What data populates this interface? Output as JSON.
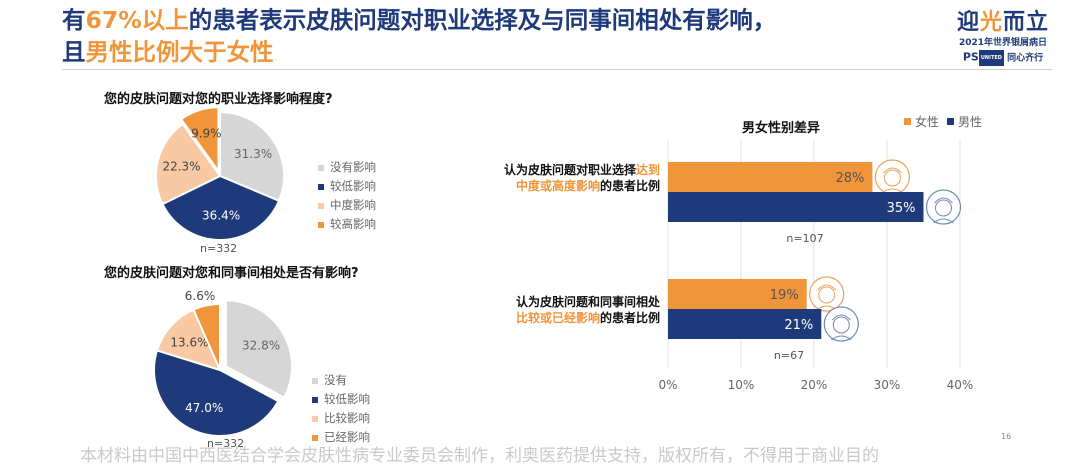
{
  "slide": {
    "title_line1_a": "有",
    "title_line1_hl": "67%以上",
    "title_line1_b": "的患者表示皮肤问题对职业选择及与同事间相处有影响，",
    "title_line2_a": "且",
    "title_line2_hl": "男性比例大于女性",
    "footer": "本材料由中国中西医结合学会皮肤性病专业委员会制作，利奥医药提供支持，版权所有，不得用于商业目的",
    "page_number": "16"
  },
  "logo": {
    "main_a": "迎",
    "main_b": "光",
    "main_c": "而立",
    "sub": "2021年世界银屑病日",
    "ps": "PS",
    "badge": "UNITED",
    "tail": "同心齐行"
  },
  "colors": {
    "navy": "#1f3a7a",
    "orange": "#f0953a",
    "peach": "#f8c9a3",
    "gray": "#d6d6d6"
  },
  "chart_data": [
    {
      "type": "pie",
      "title": "您的皮肤问题对您的职业选择影响程度?",
      "categories": [
        "没有影响",
        "较低影响",
        "中度影响",
        "较高影响"
      ],
      "values": [
        31.3,
        36.4,
        22.3,
        9.9
      ],
      "value_labels": [
        "31.3%",
        "36.4%",
        "22.3%",
        "9.9%"
      ],
      "colors": [
        "#d6d6d6",
        "#1f3a7a",
        "#f8c9a3",
        "#f0953a"
      ],
      "note": "n=332",
      "legend": "right"
    },
    {
      "type": "pie",
      "title": "您的皮肤问题对您和同事间相处是否有影响?",
      "categories": [
        "没有",
        "较低影响",
        "比较影响",
        "已经影响"
      ],
      "values": [
        32.8,
        47.0,
        13.6,
        6.6
      ],
      "value_labels": [
        "32.8%",
        "47.0%",
        "13.6%",
        "6.6%"
      ],
      "colors": [
        "#d6d6d6",
        "#1f3a7a",
        "#f8c9a3",
        "#f0953a"
      ],
      "note": "n=332",
      "legend": "right"
    },
    {
      "type": "bar",
      "orientation": "horizontal",
      "title": "男女性别差异",
      "groups": [
        {
          "label_a": "认为皮肤问题对职业选择",
          "label_hl1": "达到",
          "label_hl2": "中度或高度影响",
          "label_b": "的患者比例",
          "note": "n=107"
        },
        {
          "label_a": "认为皮肤问题和同事间相处",
          "label_hl": "比较或已经影响",
          "label_b": "的患者比例",
          "note": "n=67"
        }
      ],
      "series": [
        {
          "name": "女性",
          "color": "#f0953a",
          "values": [
            28,
            19
          ],
          "value_labels": [
            "28%",
            "19%"
          ]
        },
        {
          "name": "男性",
          "color": "#1f3a7a",
          "values": [
            35,
            21
          ],
          "value_labels": [
            "35%",
            "21%"
          ]
        }
      ],
      "xlim": [
        0,
        40
      ],
      "xticks": [
        0,
        10,
        20,
        30,
        40
      ],
      "xtick_labels": [
        "0%",
        "10%",
        "20%",
        "30%",
        "40%"
      ],
      "grid": true,
      "legend": "top-right"
    }
  ]
}
